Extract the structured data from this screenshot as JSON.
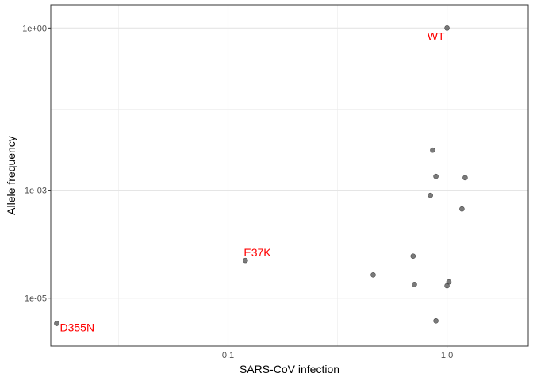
{
  "chart_data": {
    "type": "scatter",
    "xlabel": "SARS-CoV infection",
    "ylabel": "Allele frequency",
    "x_scale": "log10",
    "y_scale": "log10",
    "xlim": [
      0.0155,
      2.35
    ],
    "ylim": [
      1.3e-06,
      2.7
    ],
    "x_ticks": [
      {
        "value": 0.1,
        "label": "0.1"
      },
      {
        "value": 1.0,
        "label": "1.0"
      }
    ],
    "y_ticks": [
      {
        "value": 1e-05,
        "label": "1e-05"
      },
      {
        "value": 0.001,
        "label": "1e-03"
      },
      {
        "value": 1,
        "label": "1e+00"
      }
    ],
    "grid": true,
    "point_color": "#595959",
    "annotation_color": "#ff0000",
    "points": [
      {
        "x": 1.0,
        "y": 1.0
      },
      {
        "x": 0.86,
        "y": 0.0055
      },
      {
        "x": 0.89,
        "y": 0.0018
      },
      {
        "x": 1.21,
        "y": 0.0017
      },
      {
        "x": 0.84,
        "y": 0.0008
      },
      {
        "x": 1.17,
        "y": 0.00045
      },
      {
        "x": 0.12,
        "y": 5e-05
      },
      {
        "x": 0.7,
        "y": 6e-05
      },
      {
        "x": 0.46,
        "y": 2.7e-05
      },
      {
        "x": 0.71,
        "y": 1.8e-05
      },
      {
        "x": 1.02,
        "y": 2e-05
      },
      {
        "x": 1.0,
        "y": 1.7e-05
      },
      {
        "x": 0.89,
        "y": 3.8e-06
      },
      {
        "x": 0.0165,
        "y": 3.4e-06
      }
    ],
    "annotations": [
      {
        "text": "WT",
        "x": 1.0,
        "y": 1.0,
        "anchor": "end",
        "dx": -3,
        "dy": 15
      },
      {
        "text": "E37K",
        "x": 0.12,
        "y": 5e-05,
        "anchor": "start",
        "dx": -2,
        "dy": -5
      },
      {
        "text": "D355N",
        "x": 0.0165,
        "y": 3.4e-06,
        "anchor": "start",
        "dx": 4,
        "dy": 10
      }
    ]
  }
}
